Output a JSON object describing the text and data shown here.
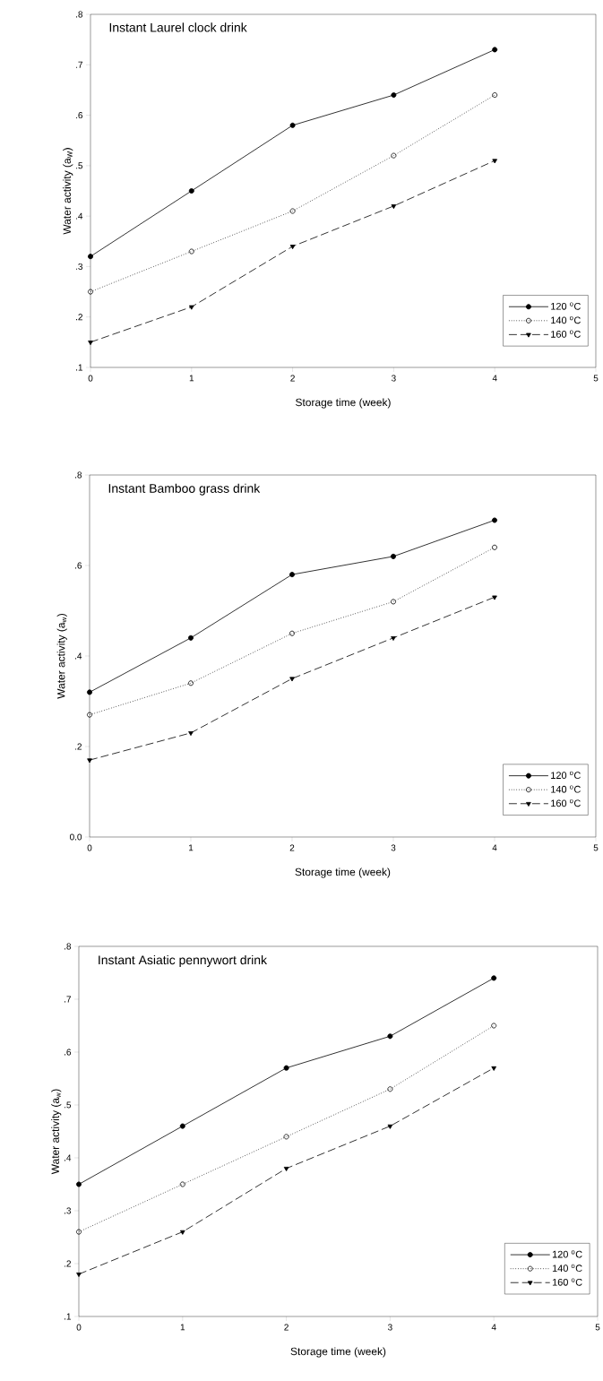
{
  "chart_data": [
    {
      "type": "line",
      "title": "Instant Laurel clock drink",
      "xlabel": "Storage time (week)",
      "ylabel": "Water activity (a$_{W}$)",
      "x": [
        0,
        1,
        2,
        3,
        4
      ],
      "xlim": [
        0,
        5
      ],
      "xticks": [
        0,
        1,
        2,
        3,
        4,
        5
      ],
      "ylim": [
        0.1,
        0.8
      ],
      "yticks": [
        {
          "value": 0.1,
          "label": ".1"
        },
        {
          "value": 0.2,
          "label": ".2"
        },
        {
          "value": 0.3,
          "label": ".3"
        },
        {
          "value": 0.4,
          "label": ".4"
        },
        {
          "value": 0.5,
          "label": ".5"
        },
        {
          "value": 0.6,
          "label": ".6"
        },
        {
          "value": 0.7,
          "label": ".7"
        },
        {
          "value": 0.8,
          "label": ".8"
        }
      ],
      "legend": "bottom right",
      "series": [
        {
          "name": "120 $^{o}$C",
          "color": "#000000",
          "marker": "circle",
          "line_style": "solid",
          "values": [
            0.32,
            0.45,
            0.58,
            0.64,
            0.73
          ]
        },
        {
          "name": "140 $^{o}$C",
          "color": "#000000",
          "marker": "circle-open",
          "line_style": "dotted",
          "values": [
            0.25,
            0.33,
            0.41,
            0.52,
            0.64
          ]
        },
        {
          "name": "160 $^{o}$C",
          "color": "#000000",
          "marker": "triangle-down",
          "line_style": "dashed",
          "values": [
            0.15,
            0.22,
            0.34,
            0.42,
            0.51
          ]
        }
      ]
    },
    {
      "type": "line",
      "title": "Instant Bamboo grass drink",
      "xlabel": "Storage time (week)",
      "ylabel": "Water activity (a$_{w}$)",
      "x": [
        0,
        1,
        2,
        3,
        4
      ],
      "xlim": [
        0,
        5
      ],
      "xticks": [
        0,
        1,
        2,
        3,
        4,
        5
      ],
      "ylim": [
        0,
        0.8
      ],
      "yticks": [
        {
          "value": 0,
          "label": "0.0"
        },
        {
          "value": 0.2,
          "label": ".2"
        },
        {
          "value": 0.4,
          "label": ".4"
        },
        {
          "value": 0.6,
          "label": ".6"
        },
        {
          "value": 0.8,
          "label": ".8"
        }
      ],
      "legend": "bottom right",
      "series": [
        {
          "name": "120 $^{o}$C",
          "color": "#000000",
          "marker": "circle",
          "line_style": "solid",
          "values": [
            0.32,
            0.44,
            0.58,
            0.62,
            0.7
          ]
        },
        {
          "name": "140 $^{o}$C",
          "color": "#000000",
          "marker": "circle-open",
          "line_style": "dotted",
          "values": [
            0.27,
            0.34,
            0.45,
            0.52,
            0.64
          ]
        },
        {
          "name": "160 $^{o}$C",
          "color": "#000000",
          "marker": "triangle-down",
          "line_style": "dashed",
          "values": [
            0.17,
            0.23,
            0.35,
            0.44,
            0.53
          ]
        }
      ]
    },
    {
      "type": "line",
      "title": "Instant Asiatic pennywort drink",
      "xlabel": "Storage time (week)",
      "ylabel": "Water activity (a$_{w}$)",
      "x": [
        0,
        1,
        2,
        3,
        4
      ],
      "xlim": [
        0,
        5
      ],
      "xticks": [
        0,
        1,
        2,
        3,
        4,
        5
      ],
      "ylim": [
        0.1,
        0.8
      ],
      "yticks": [
        {
          "value": 0.1,
          "label": ".1"
        },
        {
          "value": 0.2,
          "label": ".2"
        },
        {
          "value": 0.3,
          "label": ".3"
        },
        {
          "value": 0.4,
          "label": ".4"
        },
        {
          "value": 0.5,
          "label": ".5"
        },
        {
          "value": 0.6,
          "label": ".6"
        },
        {
          "value": 0.7,
          "label": ".7"
        },
        {
          "value": 0.8,
          "label": ".8"
        }
      ],
      "legend": "bottom right",
      "series": [
        {
          "name": "120 $^{o}$C",
          "color": "#000000",
          "marker": "circle",
          "line_style": "solid",
          "values": [
            0.35,
            0.46,
            0.57,
            0.63,
            0.74
          ]
        },
        {
          "name": "140 $^{o}$C",
          "color": "#000000",
          "marker": "circle-open",
          "line_style": "dotted",
          "values": [
            0.26,
            0.35,
            0.44,
            0.53,
            0.65
          ]
        },
        {
          "name": "160 $^{o}$C",
          "color": "#000000",
          "marker": "triangle-down",
          "line_style": "dashed",
          "values": [
            0.18,
            0.26,
            0.38,
            0.46,
            0.57
          ]
        }
      ]
    }
  ]
}
